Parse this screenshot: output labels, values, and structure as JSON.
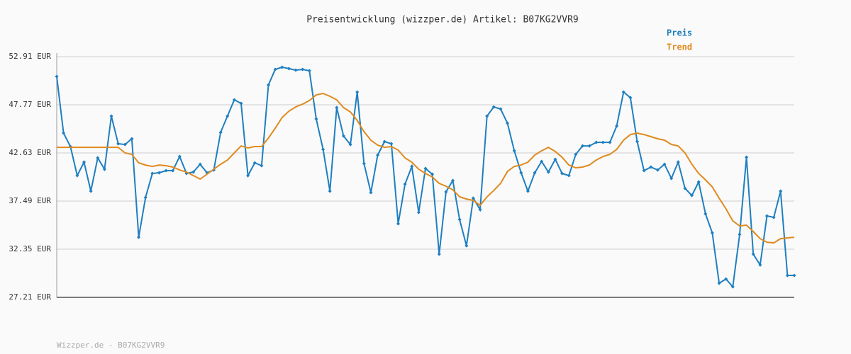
{
  "chart_data": {
    "type": "line",
    "title": "Preisentwicklung (wizzper.de) Artikel: B07KG2VVR9",
    "footer": "Wizzper.de - B07KG2VVR9",
    "ylim": [
      27.21,
      52.91
    ],
    "yticks": [
      {
        "value": 27.21,
        "label": "27.21 EUR"
      },
      {
        "value": 32.35,
        "label": "32.35 EUR"
      },
      {
        "value": 37.49,
        "label": "37.49 EUR"
      },
      {
        "value": 42.63,
        "label": "42.63 EUR"
      },
      {
        "value": 47.77,
        "label": "47.77 EUR"
      },
      {
        "value": 52.91,
        "label": "52.91 EUR"
      }
    ],
    "grid": true,
    "legend": "top-right",
    "series": [
      {
        "name": "Preis",
        "color": "#1f7fc0",
        "values": [
          50.79,
          44.75,
          43.31,
          40.21,
          41.65,
          38.55,
          42.1,
          40.89,
          46.56,
          43.61,
          43.53,
          44.14,
          33.63,
          37.87,
          40.44,
          40.51,
          40.74,
          40.74,
          42.25,
          40.44,
          40.59,
          41.42,
          40.51,
          40.81,
          44.82,
          46.56,
          48.3,
          47.92,
          40.21,
          41.57,
          41.27,
          49.89,
          51.55,
          51.78,
          51.63,
          51.47,
          51.55,
          51.4,
          46.26,
          43.01,
          38.55,
          47.47,
          44.44,
          43.53,
          49.13,
          41.49,
          38.4,
          42.4,
          43.84,
          43.61,
          35.07,
          39.3,
          41.19,
          36.28,
          40.97,
          40.36,
          31.82,
          38.47,
          39.68,
          35.52,
          32.72,
          37.79,
          36.58,
          46.56,
          47.54,
          47.32,
          45.8,
          42.86,
          40.51,
          38.55,
          40.51,
          41.72,
          40.59,
          41.95,
          40.44,
          40.21,
          42.48,
          43.38,
          43.38,
          43.76,
          43.76,
          43.76,
          45.5,
          49.13,
          48.53,
          43.84,
          40.74,
          41.12,
          40.81,
          41.42,
          39.91,
          41.65,
          38.85,
          38.09,
          39.53,
          36.13,
          34.09,
          28.72,
          29.17,
          28.34,
          33.93,
          42.17,
          31.82,
          30.68,
          35.9,
          35.75,
          38.55,
          29.55,
          29.55
        ]
      },
      {
        "name": "Trend",
        "color": "#e08a1e",
        "values": [
          43.23,
          43.23,
          43.23,
          43.23,
          43.23,
          43.23,
          43.23,
          43.23,
          43.23,
          43.23,
          42.63,
          42.48,
          41.57,
          41.34,
          41.19,
          41.34,
          41.27,
          41.12,
          40.81,
          40.59,
          40.21,
          39.83,
          40.36,
          40.89,
          41.42,
          41.87,
          42.63,
          43.38,
          43.16,
          43.31,
          43.31,
          44.22,
          45.27,
          46.41,
          47.09,
          47.54,
          47.84,
          48.22,
          48.83,
          48.98,
          48.68,
          48.3,
          47.47,
          47.01,
          46.11,
          44.9,
          43.99,
          43.46,
          43.23,
          43.31,
          42.93,
          42.1,
          41.65,
          40.89,
          40.44,
          40.06,
          39.38,
          39.08,
          38.7,
          37.94,
          37.71,
          37.56,
          37.03,
          37.94,
          38.62,
          39.38,
          40.66,
          41.19,
          41.34,
          41.65,
          42.4,
          42.86,
          43.23,
          42.78,
          42.17,
          41.34,
          41.04,
          41.12,
          41.34,
          41.87,
          42.25,
          42.48,
          43.01,
          43.99,
          44.59,
          44.75,
          44.59,
          44.37,
          44.14,
          43.99,
          43.54,
          43.38,
          42.63,
          41.42,
          40.44,
          39.76,
          39.0,
          37.79,
          36.66,
          35.37,
          34.84,
          34.92,
          34.24,
          33.48,
          33.1,
          33.02,
          33.48,
          33.56,
          33.63
        ]
      }
    ]
  }
}
